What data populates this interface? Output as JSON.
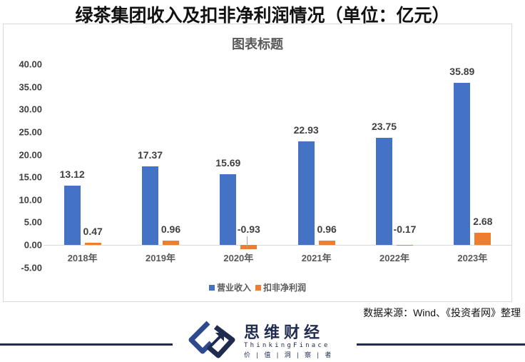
{
  "header": {
    "title": "绿茶集团收入及扣非净利润情况（单位：亿元）"
  },
  "chart_data": {
    "type": "bar",
    "title": "图表标题",
    "categories": [
      "2018年",
      "2019年",
      "2020年",
      "2021年",
      "2022年",
      "2023年"
    ],
    "series": [
      {
        "name": "营业收入",
        "color": "#4472c4",
        "values": [
          13.12,
          17.37,
          15.69,
          22.93,
          23.75,
          35.89
        ]
      },
      {
        "name": "扣非净利润",
        "color": "#ed7d31",
        "values": [
          0.47,
          0.96,
          -0.93,
          0.96,
          -0.17,
          2.68
        ]
      }
    ],
    "value_labels": {
      "营业收入": [
        "13.12",
        "17.37",
        "15.69",
        "22.93",
        "23.75",
        "35.89"
      ],
      "扣非净利润": [
        "0.47",
        "0.96",
        "-0.93",
        "0.96",
        "-0.17",
        "2.68"
      ]
    },
    "yticks": [
      "40.00",
      "35.00",
      "30.00",
      "25.00",
      "20.00",
      "15.00",
      "10.00",
      "5.00",
      "0.00",
      "-5.00"
    ],
    "ylim": [
      -5,
      40
    ],
    "xlabel": "",
    "ylabel": "",
    "grid": false,
    "legend_position": "bottom"
  },
  "legend": {
    "items": [
      {
        "label": "营业收入",
        "color": "#4472c4"
      },
      {
        "label": "扣非净利润",
        "color": "#ed7d31"
      }
    ]
  },
  "footer": {
    "source": "数据来源：Wind、《投资者网》整理",
    "logo_name": "思维财经",
    "logo_en": "ThinkingFinace",
    "logo_tagline": "价 | 值 | 洞 | 察 | 者"
  }
}
